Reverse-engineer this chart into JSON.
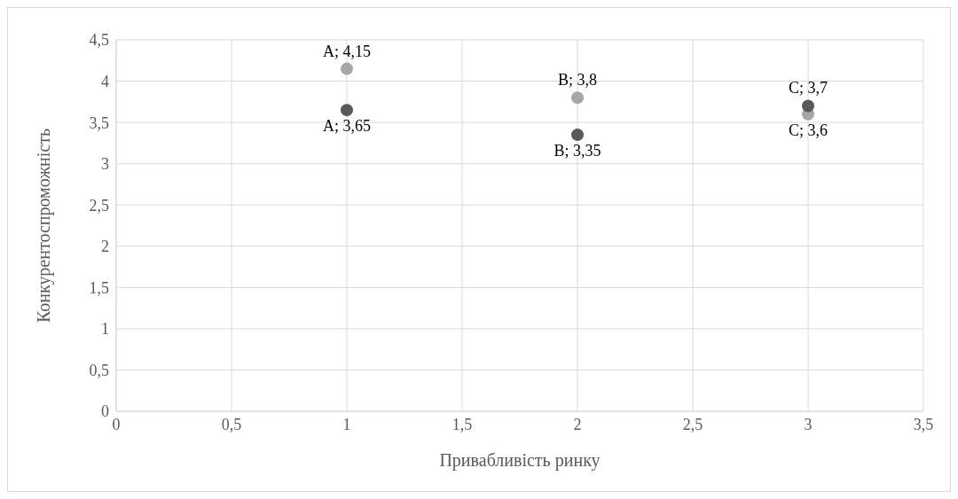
{
  "chart_data": {
    "type": "scatter",
    "xlabel": "Привабливість ринку",
    "ylabel": "Конкурентоспроможність",
    "x": [
      1,
      2,
      3
    ],
    "series": [
      {
        "color": "#a6a6a6",
        "values": [
          4.15,
          3.8,
          3.6
        ],
        "value_labels": [
          "A; 4,15",
          "B; 3,8",
          "C; 3,6"
        ]
      },
      {
        "color": "#595959",
        "values": [
          3.65,
          3.35,
          3.7
        ],
        "value_labels": [
          "A; 3,65",
          "B; 3,35",
          "C; 3,7"
        ]
      }
    ],
    "xlim": [
      0,
      3.5
    ],
    "xticks": [
      0,
      {
        "value": 0.5,
        "label": "0,5"
      },
      1,
      {
        "value": 1.5,
        "label": "1,5"
      },
      2,
      {
        "value": 2.5,
        "label": "2,5"
      },
      3,
      {
        "value": 3.5,
        "label": "3,5"
      }
    ],
    "ylim": [
      0,
      4.5
    ],
    "yticks": [
      0,
      {
        "value": 0.5,
        "label": "0,5"
      },
      1,
      {
        "value": 1.5,
        "label": "1,5"
      },
      2,
      {
        "value": 2.5,
        "label": "2,5"
      },
      3,
      {
        "value": 3.5,
        "label": "3,5"
      },
      4,
      {
        "value": 4.5,
        "label": "4,5"
      }
    ],
    "grid": true,
    "marker": "circle",
    "legend": false
  }
}
